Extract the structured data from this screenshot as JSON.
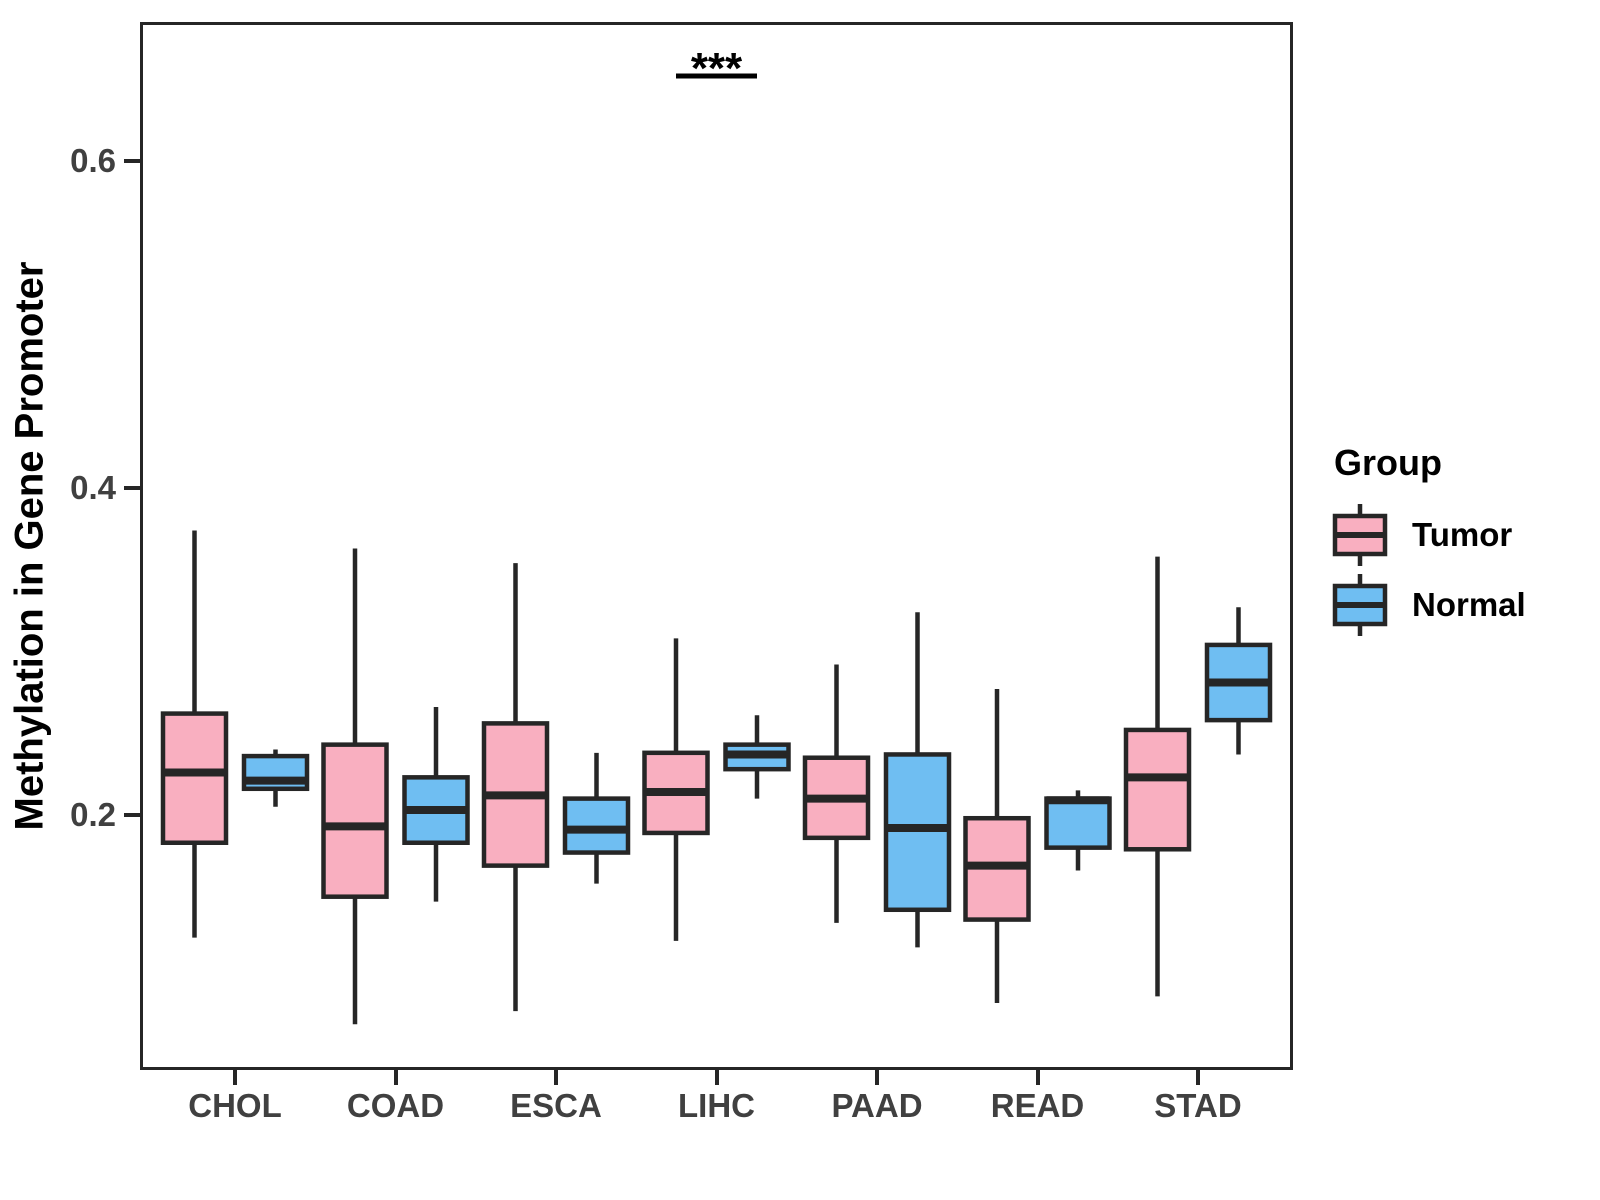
{
  "chart_data": {
    "type": "boxplot",
    "title": "",
    "xlabel": "",
    "ylabel": "Methylation in Gene Promoter",
    "categories": [
      "CHOL",
      "COAD",
      "ESCA",
      "LIHC",
      "PAAD",
      "READ",
      "STAD"
    ],
    "groups": [
      {
        "name": "Tumor",
        "color": "#F9AFC0"
      },
      {
        "name": "Normal",
        "color": "#6FBEF2"
      }
    ],
    "axis": {
      "y_min": 0.044,
      "y_max": 0.685,
      "y_ticks": [
        0.2,
        0.4,
        0.6
      ],
      "y_tick_labels": [
        "0.2",
        "0.4",
        "0.6"
      ],
      "grid": "off"
    },
    "series": [
      {
        "group": "Tumor",
        "values": [
          {
            "category": "CHOL",
            "min": 0.125,
            "q1": 0.183,
            "median": 0.226,
            "q3": 0.262,
            "max": 0.374
          },
          {
            "category": "COAD",
            "min": 0.072,
            "q1": 0.15,
            "median": 0.193,
            "q3": 0.243,
            "max": 0.363
          },
          {
            "category": "ESCA",
            "min": 0.08,
            "q1": 0.169,
            "median": 0.212,
            "q3": 0.256,
            "max": 0.354
          },
          {
            "category": "LIHC",
            "min": 0.123,
            "q1": 0.189,
            "median": 0.214,
            "q3": 0.238,
            "max": 0.308
          },
          {
            "category": "PAAD",
            "min": 0.134,
            "q1": 0.186,
            "median": 0.21,
            "q3": 0.235,
            "max": 0.292
          },
          {
            "category": "READ",
            "min": 0.085,
            "q1": 0.136,
            "median": 0.169,
            "q3": 0.198,
            "max": 0.277
          },
          {
            "category": "STAD",
            "min": 0.089,
            "q1": 0.179,
            "median": 0.223,
            "q3": 0.252,
            "max": 0.358
          }
        ]
      },
      {
        "group": "Normal",
        "values": [
          {
            "category": "CHOL",
            "min": 0.205,
            "q1": 0.216,
            "median": 0.221,
            "q3": 0.236,
            "max": 0.24
          },
          {
            "category": "COAD",
            "min": 0.147,
            "q1": 0.183,
            "median": 0.203,
            "q3": 0.223,
            "max": 0.266
          },
          {
            "category": "ESCA",
            "min": 0.158,
            "q1": 0.177,
            "median": 0.191,
            "q3": 0.21,
            "max": 0.238
          },
          {
            "category": "LIHC",
            "min": 0.21,
            "q1": 0.228,
            "median": 0.237,
            "q3": 0.243,
            "max": 0.261
          },
          {
            "category": "PAAD",
            "min": 0.119,
            "q1": 0.142,
            "median": 0.192,
            "q3": 0.237,
            "max": 0.324
          },
          {
            "category": "READ",
            "min": 0.166,
            "q1": 0.18,
            "median": 0.209,
            "q3": 0.21,
            "max": 0.215
          },
          {
            "category": "STAD",
            "min": 0.237,
            "q1": 0.258,
            "median": 0.281,
            "q3": 0.304,
            "max": 0.327
          }
        ]
      }
    ],
    "annotation": {
      "label": "***",
      "category": "LIHC",
      "y": 0.652
    },
    "legend": {
      "title": "Group",
      "position": "right"
    },
    "style": {
      "box_border_color": "#262626",
      "axis_text_color": "#404040",
      "title_color": "#000000"
    }
  }
}
